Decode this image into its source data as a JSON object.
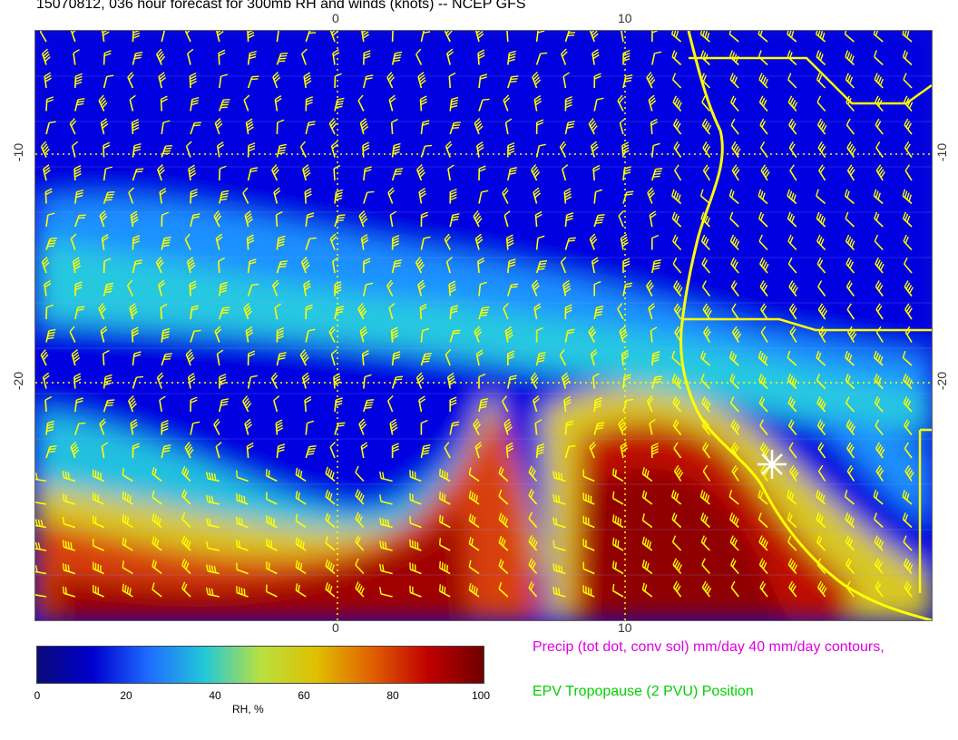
{
  "title": "15070812, 036 hour forecast for 300mb RH and winds (knots) -- NCEP GFS",
  "map": {
    "top_tick_labels": [
      "0",
      "10"
    ],
    "bottom_tick_labels": [
      "0",
      "10"
    ],
    "left_tick_labels": [
      "-10",
      "-20"
    ],
    "right_tick_labels": [
      "-10",
      "-20"
    ],
    "wind_barb_color": "#ffff00",
    "coastline_color": "#ffff00",
    "marker": "white-star-marker"
  },
  "colorbar": {
    "labels": [
      "0",
      "20",
      "40",
      "60",
      "80",
      "100"
    ],
    "title": "RH, %",
    "colors": [
      "#0a0a7a",
      "#0000d0",
      "#1e6cff",
      "#22c8d8",
      "#b8e040",
      "#e0c000",
      "#e06000",
      "#c00000",
      "#700000"
    ]
  },
  "legend": {
    "precip": "Precip (tot dot, conv sol) mm/day 40 mm/day contours,",
    "tropopause": "EPV Tropopause (2 PVU) Position"
  }
}
